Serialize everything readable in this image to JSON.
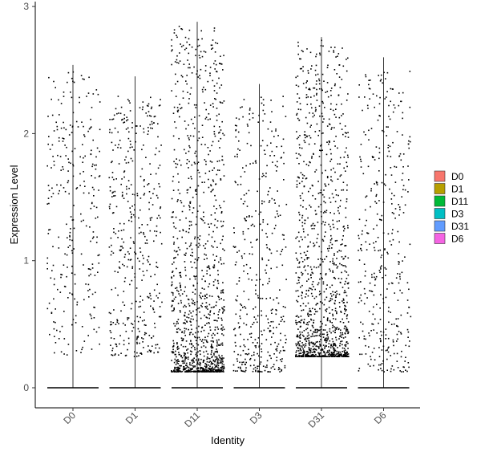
{
  "chart_data": {
    "type": "scatter",
    "subtype": "violin-jitter",
    "title": "",
    "xlabel": "Identity",
    "ylabel": "Expression Level",
    "ylim": [
      -0.15,
      3.02
    ],
    "yticks": [
      0,
      1,
      2,
      3
    ],
    "grid": false,
    "legend_position": "right",
    "categories": [
      "D0",
      "D1",
      "D11",
      "D3",
      "D31",
      "D6"
    ],
    "legend": [
      {
        "label": "D0",
        "color": "#F8766D"
      },
      {
        "label": "D1",
        "color": "#B79F00"
      },
      {
        "label": "D11",
        "color": "#00BA38"
      },
      {
        "label": "D3",
        "color": "#00BFC4"
      },
      {
        "label": "D31",
        "color": "#619CFF"
      },
      {
        "label": "D6",
        "color": "#F564E3"
      }
    ],
    "groups": [
      {
        "name": "D0",
        "max": 2.54,
        "n_points": 280,
        "low": 0.25,
        "high": 2.5,
        "skew": 1.0
      },
      {
        "name": "D1",
        "max": 2.45,
        "n_points": 420,
        "low": 0.25,
        "high": 2.3,
        "skew": 1.2
      },
      {
        "name": "D11",
        "max": 2.88,
        "n_points": 1150,
        "low": 0.13,
        "high": 2.85,
        "skew": 2.6
      },
      {
        "name": "D3",
        "max": 2.39,
        "n_points": 420,
        "low": 0.13,
        "high": 2.3,
        "skew": 1.6
      },
      {
        "name": "D31",
        "max": 2.76,
        "n_points": 1150,
        "low": 0.25,
        "high": 2.75,
        "skew": 2.4
      },
      {
        "name": "D6",
        "max": 2.6,
        "n_points": 380,
        "low": 0.13,
        "high": 2.5,
        "skew": 1.4
      }
    ]
  }
}
